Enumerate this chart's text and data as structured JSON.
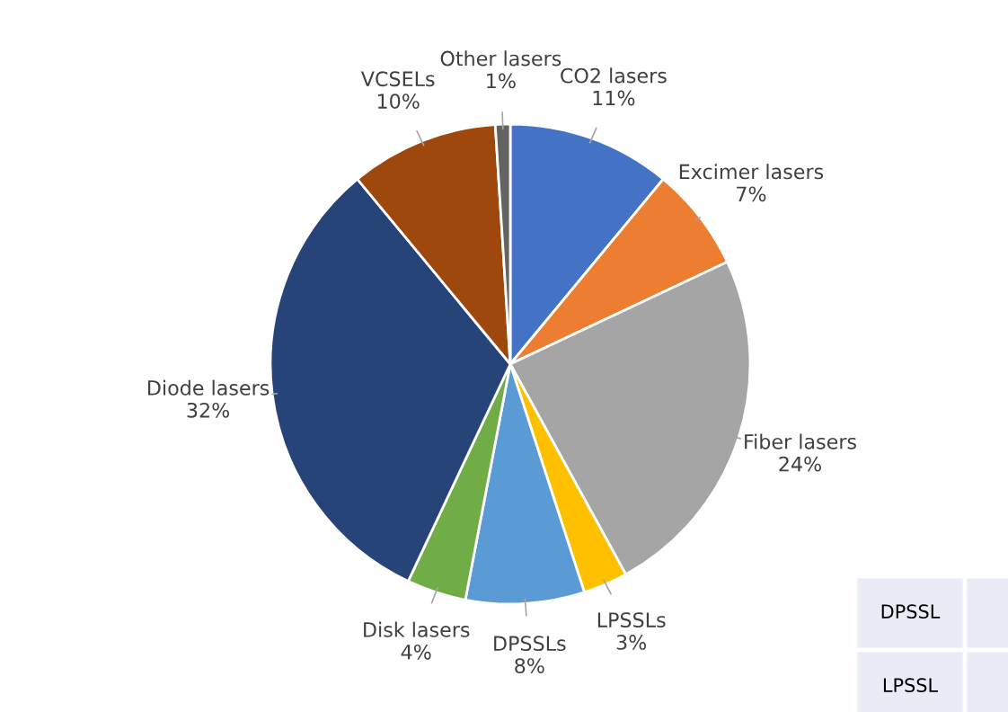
{
  "chart_data": {
    "type": "pie",
    "categories": [
      "CO2 lasers",
      "Excimer lasers",
      "Fiber lasers",
      "LPSSLs",
      "DPSSLs",
      "Disk lasers",
      "Diode lasers",
      "VCSELs",
      "Other lasers"
    ],
    "values": [
      11,
      7,
      24,
      3,
      8,
      4,
      32,
      10,
      1
    ],
    "value_labels": [
      "11%",
      "7%",
      "24%",
      "3%",
      "8%",
      "4%",
      "32%",
      "10%",
      "1%"
    ],
    "colors": [
      "#4472c4",
      "#ed7d31",
      "#a5a5a5",
      "#ffc000",
      "#5b9bd5",
      "#70ad47",
      "#264478",
      "#9e480e",
      "#636363"
    ],
    "annotations": [
      "DPSSL",
      "LPSSL"
    ]
  }
}
